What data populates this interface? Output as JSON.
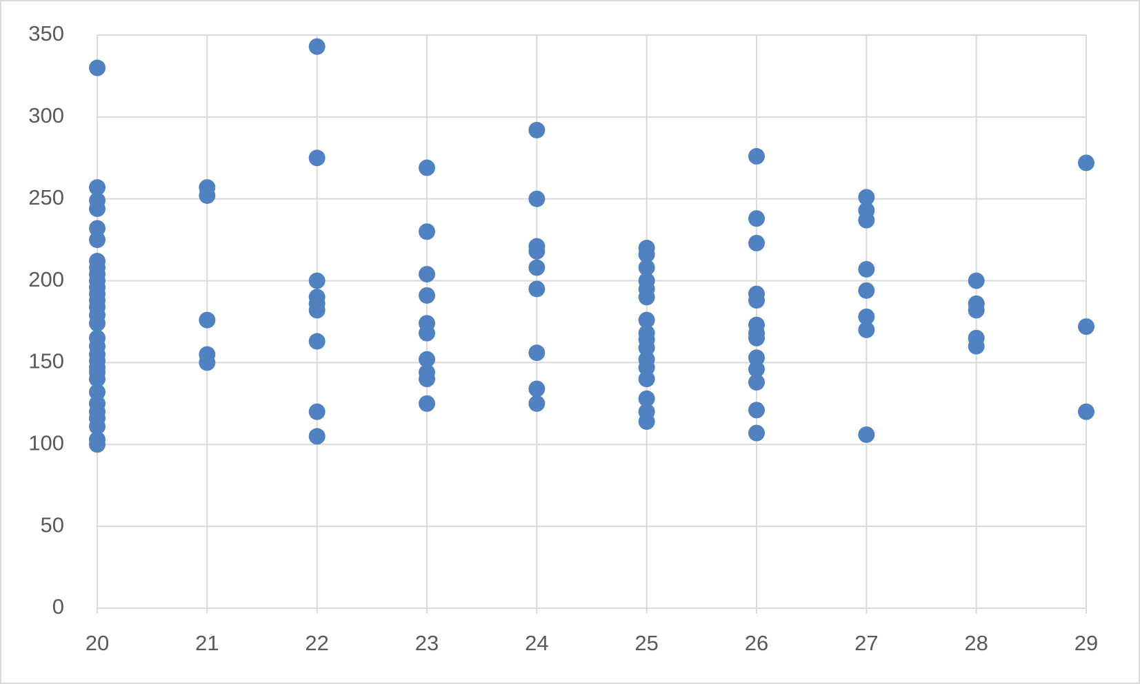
{
  "chart_data": {
    "type": "scatter",
    "color": "#5081c1",
    "grid": true,
    "xlim": [
      20,
      29
    ],
    "xticks": [
      20,
      21,
      22,
      23,
      24,
      25,
      26,
      27,
      28,
      29
    ],
    "ylim": [
      0,
      350
    ],
    "yticks": [
      0,
      50,
      100,
      150,
      200,
      250,
      300,
      350
    ],
    "x": [
      20,
      20,
      20,
      20,
      20,
      20,
      20,
      20,
      20,
      20,
      20,
      20,
      20,
      20,
      20,
      20,
      20,
      20,
      20,
      20,
      20,
      20,
      20,
      20,
      20,
      20,
      20,
      20,
      20,
      20,
      21,
      21,
      21,
      21,
      21,
      22,
      22,
      22,
      22,
      22,
      22,
      22,
      22,
      22,
      23,
      23,
      23,
      23,
      23,
      23,
      23,
      23,
      23,
      23,
      24,
      24,
      24,
      24,
      24,
      24,
      24,
      24,
      24,
      25,
      25,
      25,
      25,
      25,
      25,
      25,
      25,
      25,
      25,
      25,
      25,
      25,
      25,
      25,
      25,
      26,
      26,
      26,
      26,
      26,
      26,
      26,
      26,
      26,
      26,
      26,
      26,
      26,
      27,
      27,
      27,
      27,
      27,
      27,
      27,
      27,
      28,
      28,
      28,
      28,
      28,
      29,
      29,
      29
    ],
    "y": [
      330,
      257,
      249,
      244,
      232,
      225,
      212,
      208,
      204,
      200,
      196,
      192,
      188,
      184,
      179,
      174,
      165,
      160,
      155,
      151,
      147,
      144,
      140,
      132,
      125,
      120,
      116,
      111,
      103,
      100,
      257,
      252,
      176,
      155,
      150,
      343,
      275,
      200,
      190,
      186,
      182,
      163,
      120,
      105,
      269,
      230,
      204,
      191,
      174,
      168,
      152,
      144,
      140,
      125,
      292,
      250,
      221,
      218,
      208,
      195,
      156,
      134,
      125,
      220,
      216,
      208,
      200,
      195,
      190,
      176,
      168,
      164,
      159,
      152,
      147,
      140,
      128,
      120,
      114,
      276,
      238,
      223,
      192,
      188,
      173,
      168,
      165,
      153,
      146,
      138,
      121,
      107,
      251,
      243,
      237,
      207,
      194,
      178,
      170,
      106,
      200,
      186,
      182,
      165,
      160,
      272,
      172,
      120
    ]
  }
}
